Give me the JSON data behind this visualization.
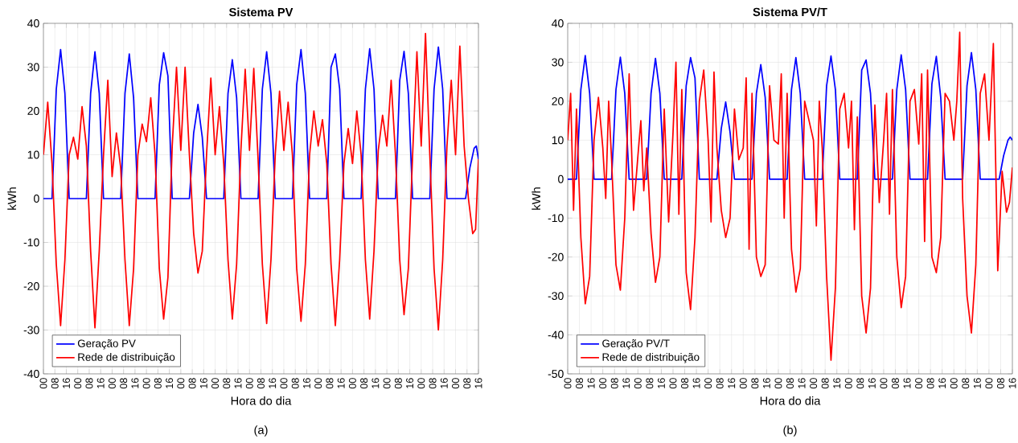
{
  "chart_data": [
    {
      "type": "line",
      "title": "Sistema PV",
      "xlabel": "Hora do dia",
      "ylabel": "kWh",
      "annotations": [
        "(a)"
      ],
      "xlim": [
        0,
        304
      ],
      "ylim": [
        -40,
        40
      ],
      "yticks": [
        -40,
        -30,
        -20,
        -10,
        0,
        10,
        20,
        30,
        40
      ],
      "xticks": [
        {
          "value": 0,
          "label": "00"
        },
        {
          "value": 8,
          "label": "08"
        },
        {
          "value": 16,
          "label": "16"
        },
        {
          "value": 24,
          "label": "00"
        },
        {
          "value": 32,
          "label": "08"
        },
        {
          "value": 40,
          "label": "16"
        },
        {
          "value": 48,
          "label": "00"
        },
        {
          "value": 56,
          "label": "08"
        },
        {
          "value": 64,
          "label": "16"
        },
        {
          "value": 72,
          "label": "00"
        },
        {
          "value": 80,
          "label": "08"
        },
        {
          "value": 88,
          "label": "16"
        },
        {
          "value": 96,
          "label": "00"
        },
        {
          "value": 104,
          "label": "08"
        },
        {
          "value": 112,
          "label": "16"
        },
        {
          "value": 120,
          "label": "00"
        },
        {
          "value": 128,
          "label": "08"
        },
        {
          "value": 136,
          "label": "16"
        },
        {
          "value": 144,
          "label": "00"
        },
        {
          "value": 152,
          "label": "08"
        },
        {
          "value": 160,
          "label": "16"
        },
        {
          "value": 168,
          "label": "00"
        },
        {
          "value": 176,
          "label": "08"
        },
        {
          "value": 184,
          "label": "16"
        },
        {
          "value": 192,
          "label": "00"
        },
        {
          "value": 200,
          "label": "08"
        },
        {
          "value": 208,
          "label": "16"
        },
        {
          "value": 216,
          "label": "00"
        },
        {
          "value": 224,
          "label": "08"
        },
        {
          "value": 232,
          "label": "16"
        },
        {
          "value": 240,
          "label": "00"
        },
        {
          "value": 248,
          "label": "08"
        },
        {
          "value": 256,
          "label": "16"
        },
        {
          "value": 264,
          "label": "00"
        },
        {
          "value": 272,
          "label": "08"
        },
        {
          "value": 280,
          "label": "16"
        },
        {
          "value": 288,
          "label": "00"
        },
        {
          "value": 296,
          "label": "08"
        },
        {
          "value": 304,
          "label": "16"
        }
      ],
      "grid": true,
      "legend": "bottom left",
      "series": [
        {
          "name": "Geração PV",
          "color": "#0000ff",
          "x": [
            0,
            6,
            9,
            12,
            15,
            18,
            30,
            33,
            36,
            39,
            42,
            54,
            57,
            60,
            63,
            66,
            78,
            81,
            84,
            87,
            90,
            102,
            105,
            108,
            111,
            114,
            126,
            129,
            132,
            135,
            138,
            150,
            153,
            156,
            159,
            162,
            174,
            177,
            180,
            183,
            186,
            198,
            201,
            204,
            207,
            210,
            222,
            225,
            228,
            231,
            234,
            246,
            249,
            252,
            255,
            258,
            270,
            273,
            276,
            279,
            282,
            295,
            298,
            301,
            302.5,
            304
          ],
          "values": [
            0,
            0,
            25,
            34,
            24,
            0,
            0,
            24,
            33.5,
            24,
            0,
            0,
            24,
            33,
            23,
            0,
            0,
            26,
            33.3,
            28,
            0,
            0,
            15,
            21.5,
            14,
            0,
            0,
            24,
            31.7,
            23,
            0,
            0,
            25,
            33.5,
            24,
            0,
            0,
            26,
            34,
            24,
            0,
            0,
            30,
            33,
            25,
            0,
            0,
            25,
            34.2,
            25,
            0,
            0,
            27,
            33.6,
            24,
            0,
            0,
            25,
            34.6,
            25,
            0,
            0,
            7,
            11.5,
            12,
            9
          ]
        },
        {
          "name": "Rede de distribuição",
          "color": "#ff0000",
          "x": [
            0,
            3,
            6,
            9,
            12,
            15,
            18,
            21,
            24,
            27,
            30,
            33,
            36,
            39,
            42,
            45,
            48,
            51,
            54,
            57,
            60,
            63,
            66,
            69,
            72,
            75,
            78,
            81,
            84,
            87,
            90,
            93,
            96,
            99,
            102,
            105,
            108,
            111,
            114,
            117,
            120,
            123,
            126,
            129,
            132,
            135,
            138,
            141,
            144,
            147,
            150,
            153,
            156,
            159,
            162,
            165,
            168,
            171,
            174,
            177,
            180,
            183,
            186,
            189,
            192,
            195,
            198,
            201,
            204,
            207,
            210,
            213,
            216,
            219,
            222,
            225,
            228,
            231,
            234,
            237,
            240,
            243,
            246,
            249,
            252,
            255,
            258,
            261,
            264,
            267,
            270,
            273,
            276,
            279,
            282,
            285,
            288,
            291,
            294,
            297,
            300,
            302,
            304
          ],
          "values": [
            10,
            22,
            8,
            -15,
            -29,
            -14,
            10,
            14,
            9,
            21,
            12,
            -12,
            -29.5,
            -12,
            10,
            27,
            5,
            15,
            7,
            -14,
            -29,
            -16,
            10,
            17,
            13,
            23,
            10,
            -16,
            -27.5,
            -18,
            12,
            30,
            11,
            30,
            10,
            -8,
            -17,
            -12,
            10,
            27.5,
            10,
            21,
            8,
            -14,
            -27.5,
            -15,
            11,
            29.5,
            11,
            29.7,
            9,
            -15,
            -28.5,
            -14,
            10,
            24.5,
            11,
            22,
            10,
            -16,
            -28,
            -15,
            10,
            20,
            12,
            18,
            8,
            -15,
            -29,
            -14,
            8,
            16,
            8,
            20,
            10,
            -14,
            -27.5,
            -12,
            11,
            19,
            12,
            27,
            10,
            -14,
            -26.5,
            -16,
            10,
            33.5,
            12,
            37.7,
            10,
            -16,
            -30,
            -14,
            12,
            27,
            10,
            34.8,
            12,
            0,
            -8,
            -7,
            9
          ]
        }
      ]
    },
    {
      "type": "line",
      "title": "Sistema PV/T",
      "xlabel": "Hora do dia",
      "ylabel": "kWh",
      "annotations": [
        "(b)"
      ],
      "xlim": [
        0,
        304
      ],
      "ylim": [
        -50,
        40
      ],
      "yticks": [
        -50,
        -40,
        -30,
        -20,
        -10,
        0,
        10,
        20,
        30,
        40
      ],
      "xticks": [
        {
          "value": 0,
          "label": "00"
        },
        {
          "value": 8,
          "label": "08"
        },
        {
          "value": 16,
          "label": "16"
        },
        {
          "value": 24,
          "label": "00"
        },
        {
          "value": 32,
          "label": "08"
        },
        {
          "value": 40,
          "label": "16"
        },
        {
          "value": 48,
          "label": "00"
        },
        {
          "value": 56,
          "label": "08"
        },
        {
          "value": 64,
          "label": "16"
        },
        {
          "value": 72,
          "label": "00"
        },
        {
          "value": 80,
          "label": "08"
        },
        {
          "value": 88,
          "label": "16"
        },
        {
          "value": 96,
          "label": "00"
        },
        {
          "value": 104,
          "label": "08"
        },
        {
          "value": 112,
          "label": "16"
        },
        {
          "value": 120,
          "label": "00"
        },
        {
          "value": 128,
          "label": "08"
        },
        {
          "value": 136,
          "label": "16"
        },
        {
          "value": 144,
          "label": "00"
        },
        {
          "value": 152,
          "label": "08"
        },
        {
          "value": 160,
          "label": "16"
        },
        {
          "value": 168,
          "label": "00"
        },
        {
          "value": 176,
          "label": "08"
        },
        {
          "value": 184,
          "label": "16"
        },
        {
          "value": 192,
          "label": "00"
        },
        {
          "value": 200,
          "label": "08"
        },
        {
          "value": 208,
          "label": "16"
        },
        {
          "value": 216,
          "label": "00"
        },
        {
          "value": 224,
          "label": "08"
        },
        {
          "value": 232,
          "label": "16"
        },
        {
          "value": 240,
          "label": "00"
        },
        {
          "value": 248,
          "label": "08"
        },
        {
          "value": 256,
          "label": "16"
        },
        {
          "value": 264,
          "label": "00"
        },
        {
          "value": 272,
          "label": "08"
        },
        {
          "value": 280,
          "label": "16"
        },
        {
          "value": 288,
          "label": "00"
        },
        {
          "value": 296,
          "label": "08"
        },
        {
          "value": 304,
          "label": "16"
        }
      ],
      "grid": true,
      "legend": "bottom left",
      "series": [
        {
          "name": "Geração PV/T",
          "color": "#0000ff",
          "x": [
            0,
            6,
            9,
            12,
            15,
            18,
            30,
            33,
            36,
            39,
            42,
            54,
            57,
            60,
            63,
            66,
            78,
            81,
            84,
            87,
            90,
            102,
            105,
            108,
            111,
            114,
            126,
            129,
            132,
            135,
            138,
            150,
            153,
            156,
            159,
            162,
            174,
            177,
            180,
            183,
            186,
            198,
            201,
            204,
            207,
            210,
            222,
            225,
            228,
            231,
            234,
            246,
            249,
            252,
            255,
            258,
            270,
            273,
            276,
            279,
            282,
            295,
            298,
            301,
            302.5,
            304
          ],
          "values": [
            0,
            0,
            23,
            31.7,
            22,
            0,
            0,
            23,
            31.3,
            22,
            0,
            0,
            22,
            31,
            22,
            0,
            0,
            24,
            31.2,
            26,
            0,
            0,
            13,
            19.8,
            12,
            0,
            0,
            22,
            29.4,
            21,
            0,
            0,
            23,
            31.2,
            22,
            0,
            0,
            24,
            31.6,
            23,
            0,
            0,
            28,
            30.6,
            22,
            0,
            0,
            23,
            31.9,
            23,
            0,
            0,
            24.5,
            31.5,
            21,
            0,
            0,
            24,
            32.5,
            23,
            0,
            0,
            6,
            10,
            10.8,
            10
          ]
        },
        {
          "name": "Rede de distribuição",
          "color": "#ff0000",
          "x": [
            0,
            2,
            4,
            6,
            9,
            12,
            15,
            18,
            21,
            24,
            26,
            28,
            30,
            33,
            36,
            39,
            42,
            45,
            48,
            50,
            52,
            54,
            57,
            60,
            63,
            66,
            69,
            72,
            74,
            76,
            78,
            81,
            84,
            87,
            90,
            93,
            96,
            98,
            100,
            102,
            105,
            108,
            111,
            114,
            117,
            120,
            122,
            124,
            126,
            129,
            132,
            135,
            138,
            141,
            144,
            146,
            148,
            150,
            153,
            156,
            159,
            162,
            165,
            168,
            170,
            172,
            174,
            177,
            180,
            183,
            186,
            189,
            192,
            194,
            196,
            198,
            201,
            204,
            207,
            210,
            213,
            216,
            218,
            220,
            222,
            225,
            228,
            231,
            234,
            237,
            240,
            242,
            244,
            246,
            249,
            252,
            255,
            258,
            261,
            264,
            266,
            268,
            270,
            273,
            276,
            279,
            282,
            285,
            288,
            291,
            294,
            297,
            300,
            302,
            304
          ],
          "values": [
            10,
            22,
            -8,
            18,
            -15,
            -32,
            -25,
            10,
            21,
            8,
            -5,
            20,
            5,
            -22,
            -28.5,
            -10,
            27,
            -8,
            6,
            15,
            -3,
            8,
            -14,
            -26.5,
            -20,
            18,
            -11,
            12,
            30,
            -9,
            23,
            -24,
            -33.5,
            -15,
            20,
            28,
            10,
            -11,
            27.5,
            8,
            -8,
            -15,
            -10,
            18,
            5,
            8,
            26,
            -18,
            22,
            -20,
            -25,
            -22,
            24,
            10,
            9,
            27,
            -10,
            22,
            -18,
            -29,
            -23,
            20,
            15,
            10,
            -12,
            20,
            8,
            -25,
            -46.5,
            -28,
            18,
            22,
            8,
            20,
            -13,
            16,
            -30,
            -39.5,
            -28,
            19,
            -6,
            10,
            22,
            -9,
            23,
            -20,
            -33,
            -25,
            20,
            23,
            9,
            27,
            -16,
            28,
            -20,
            -24,
            -15,
            22,
            20,
            10,
            20,
            37.7,
            -5,
            -30,
            -39.5,
            -22,
            22,
            27,
            10,
            34.8,
            -23.5,
            2,
            -8.5,
            -6,
            3
          ]
        }
      ]
    }
  ]
}
